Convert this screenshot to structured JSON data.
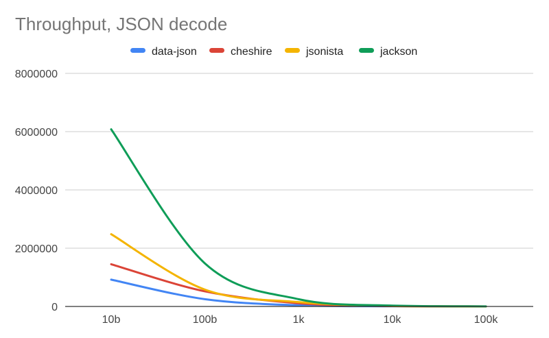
{
  "chart_data": {
    "type": "line",
    "title": "Throughput, JSON decode",
    "xlabel": "",
    "ylabel": "",
    "categories": [
      "10b",
      "100b",
      "1k",
      "10k",
      "100k"
    ],
    "ylim": [
      0,
      8000000
    ],
    "yticks": [
      "0",
      "2000000",
      "4000000",
      "6000000",
      "8000000"
    ],
    "grid": true,
    "legend_position": "top",
    "series": [
      {
        "name": "data-json",
        "color": "#4285F4",
        "values": [
          920000,
          250000,
          40000,
          5000,
          500
        ]
      },
      {
        "name": "cheshire",
        "color": "#DB4437",
        "values": [
          1450000,
          520000,
          110000,
          12000,
          1200
        ]
      },
      {
        "name": "jsonista",
        "color": "#F4B400",
        "values": [
          2480000,
          580000,
          150000,
          15000,
          1500
        ]
      },
      {
        "name": "jackson",
        "color": "#0F9D58",
        "values": [
          6080000,
          1480000,
          250000,
          30000,
          3000
        ]
      }
    ]
  }
}
